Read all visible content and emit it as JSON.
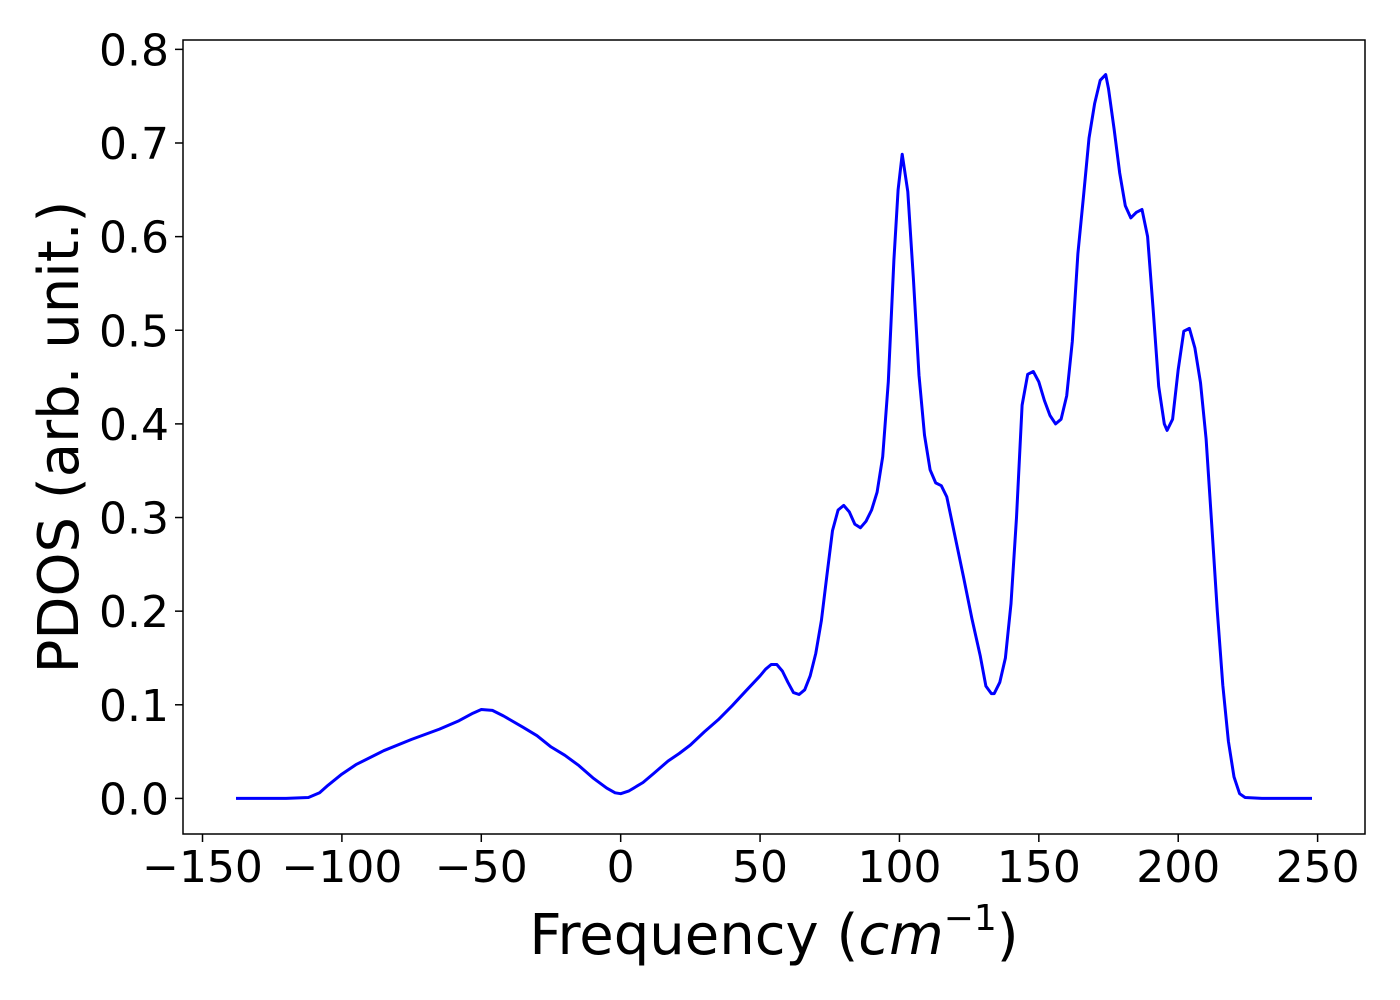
{
  "chart_data": {
    "type": "line",
    "xlabel_main": "Frequency (",
    "xlabel_unit": "cm",
    "xlabel_sup": "−1",
    "xlabel_close": ")",
    "ylabel": "PDOS (arb. unit.)",
    "xlim": [
      -157,
      267
    ],
    "ylim": [
      -0.038,
      0.81
    ],
    "x_ticks": [
      -150,
      -100,
      -50,
      0,
      50,
      100,
      150,
      200,
      250
    ],
    "x_tick_labels": [
      "−150",
      "−100",
      "−50",
      "0",
      "50",
      "100",
      "150",
      "200",
      "250"
    ],
    "y_ticks": [
      0.0,
      0.1,
      0.2,
      0.3,
      0.4,
      0.5,
      0.6,
      0.7,
      0.8
    ],
    "y_tick_labels": [
      "0.0",
      "0.1",
      "0.2",
      "0.3",
      "0.4",
      "0.5",
      "0.6",
      "0.7",
      "0.8"
    ],
    "grid": false,
    "series": [
      {
        "color": "#0000ff",
        "x": [
          -138,
          -120,
          -112,
          -108,
          -105,
          -100,
          -95,
          -85,
          -75,
          -65,
          -58,
          -53,
          -50,
          -46,
          -42,
          -35,
          -30,
          -25,
          -20,
          -15,
          -10,
          -5,
          -2,
          0,
          3,
          8,
          12,
          17,
          21,
          25,
          30,
          35,
          40,
          45,
          50,
          52,
          54,
          56,
          58,
          60,
          62,
          64,
          66,
          68,
          70,
          72,
          74,
          76,
          78,
          80,
          82,
          84,
          86,
          88,
          90,
          92,
          94,
          96,
          98,
          99.5,
          101,
          103,
          105,
          107,
          109,
          111,
          113,
          115,
          117,
          120,
          123,
          126,
          129,
          131,
          133,
          134,
          136,
          138,
          140,
          142,
          144,
          146,
          148,
          150,
          152,
          154,
          156,
          158,
          160,
          162,
          164,
          166,
          168,
          170,
          172,
          174,
          175,
          177,
          179,
          181,
          183,
          185,
          187,
          189,
          191,
          193,
          195,
          196,
          198,
          200,
          202,
          204,
          206,
          208,
          210,
          212,
          214,
          216,
          218,
          220,
          222,
          224,
          230,
          248
        ],
        "y": [
          0.0,
          0.0,
          0.001,
          0.006,
          0.014,
          0.026,
          0.036,
          0.051,
          0.063,
          0.074,
          0.083,
          0.091,
          0.095,
          0.094,
          0.088,
          0.076,
          0.067,
          0.055,
          0.046,
          0.035,
          0.022,
          0.011,
          0.006,
          0.005,
          0.008,
          0.017,
          0.027,
          0.04,
          0.048,
          0.057,
          0.071,
          0.084,
          0.099,
          0.115,
          0.131,
          0.138,
          0.143,
          0.143,
          0.136,
          0.124,
          0.113,
          0.111,
          0.116,
          0.131,
          0.155,
          0.19,
          0.239,
          0.286,
          0.308,
          0.313,
          0.306,
          0.293,
          0.289,
          0.296,
          0.308,
          0.327,
          0.365,
          0.445,
          0.575,
          0.65,
          0.688,
          0.648,
          0.555,
          0.452,
          0.388,
          0.351,
          0.337,
          0.334,
          0.322,
          0.279,
          0.236,
          0.192,
          0.152,
          0.12,
          0.112,
          0.112,
          0.124,
          0.15,
          0.208,
          0.3,
          0.42,
          0.453,
          0.456,
          0.445,
          0.425,
          0.409,
          0.4,
          0.405,
          0.43,
          0.488,
          0.582,
          0.642,
          0.705,
          0.742,
          0.767,
          0.773,
          0.758,
          0.715,
          0.668,
          0.633,
          0.62,
          0.626,
          0.629,
          0.6,
          0.523,
          0.44,
          0.4,
          0.393,
          0.405,
          0.458,
          0.499,
          0.502,
          0.481,
          0.444,
          0.384,
          0.293,
          0.2,
          0.121,
          0.061,
          0.023,
          0.005,
          0.001,
          0.0,
          0.0
        ]
      }
    ]
  }
}
